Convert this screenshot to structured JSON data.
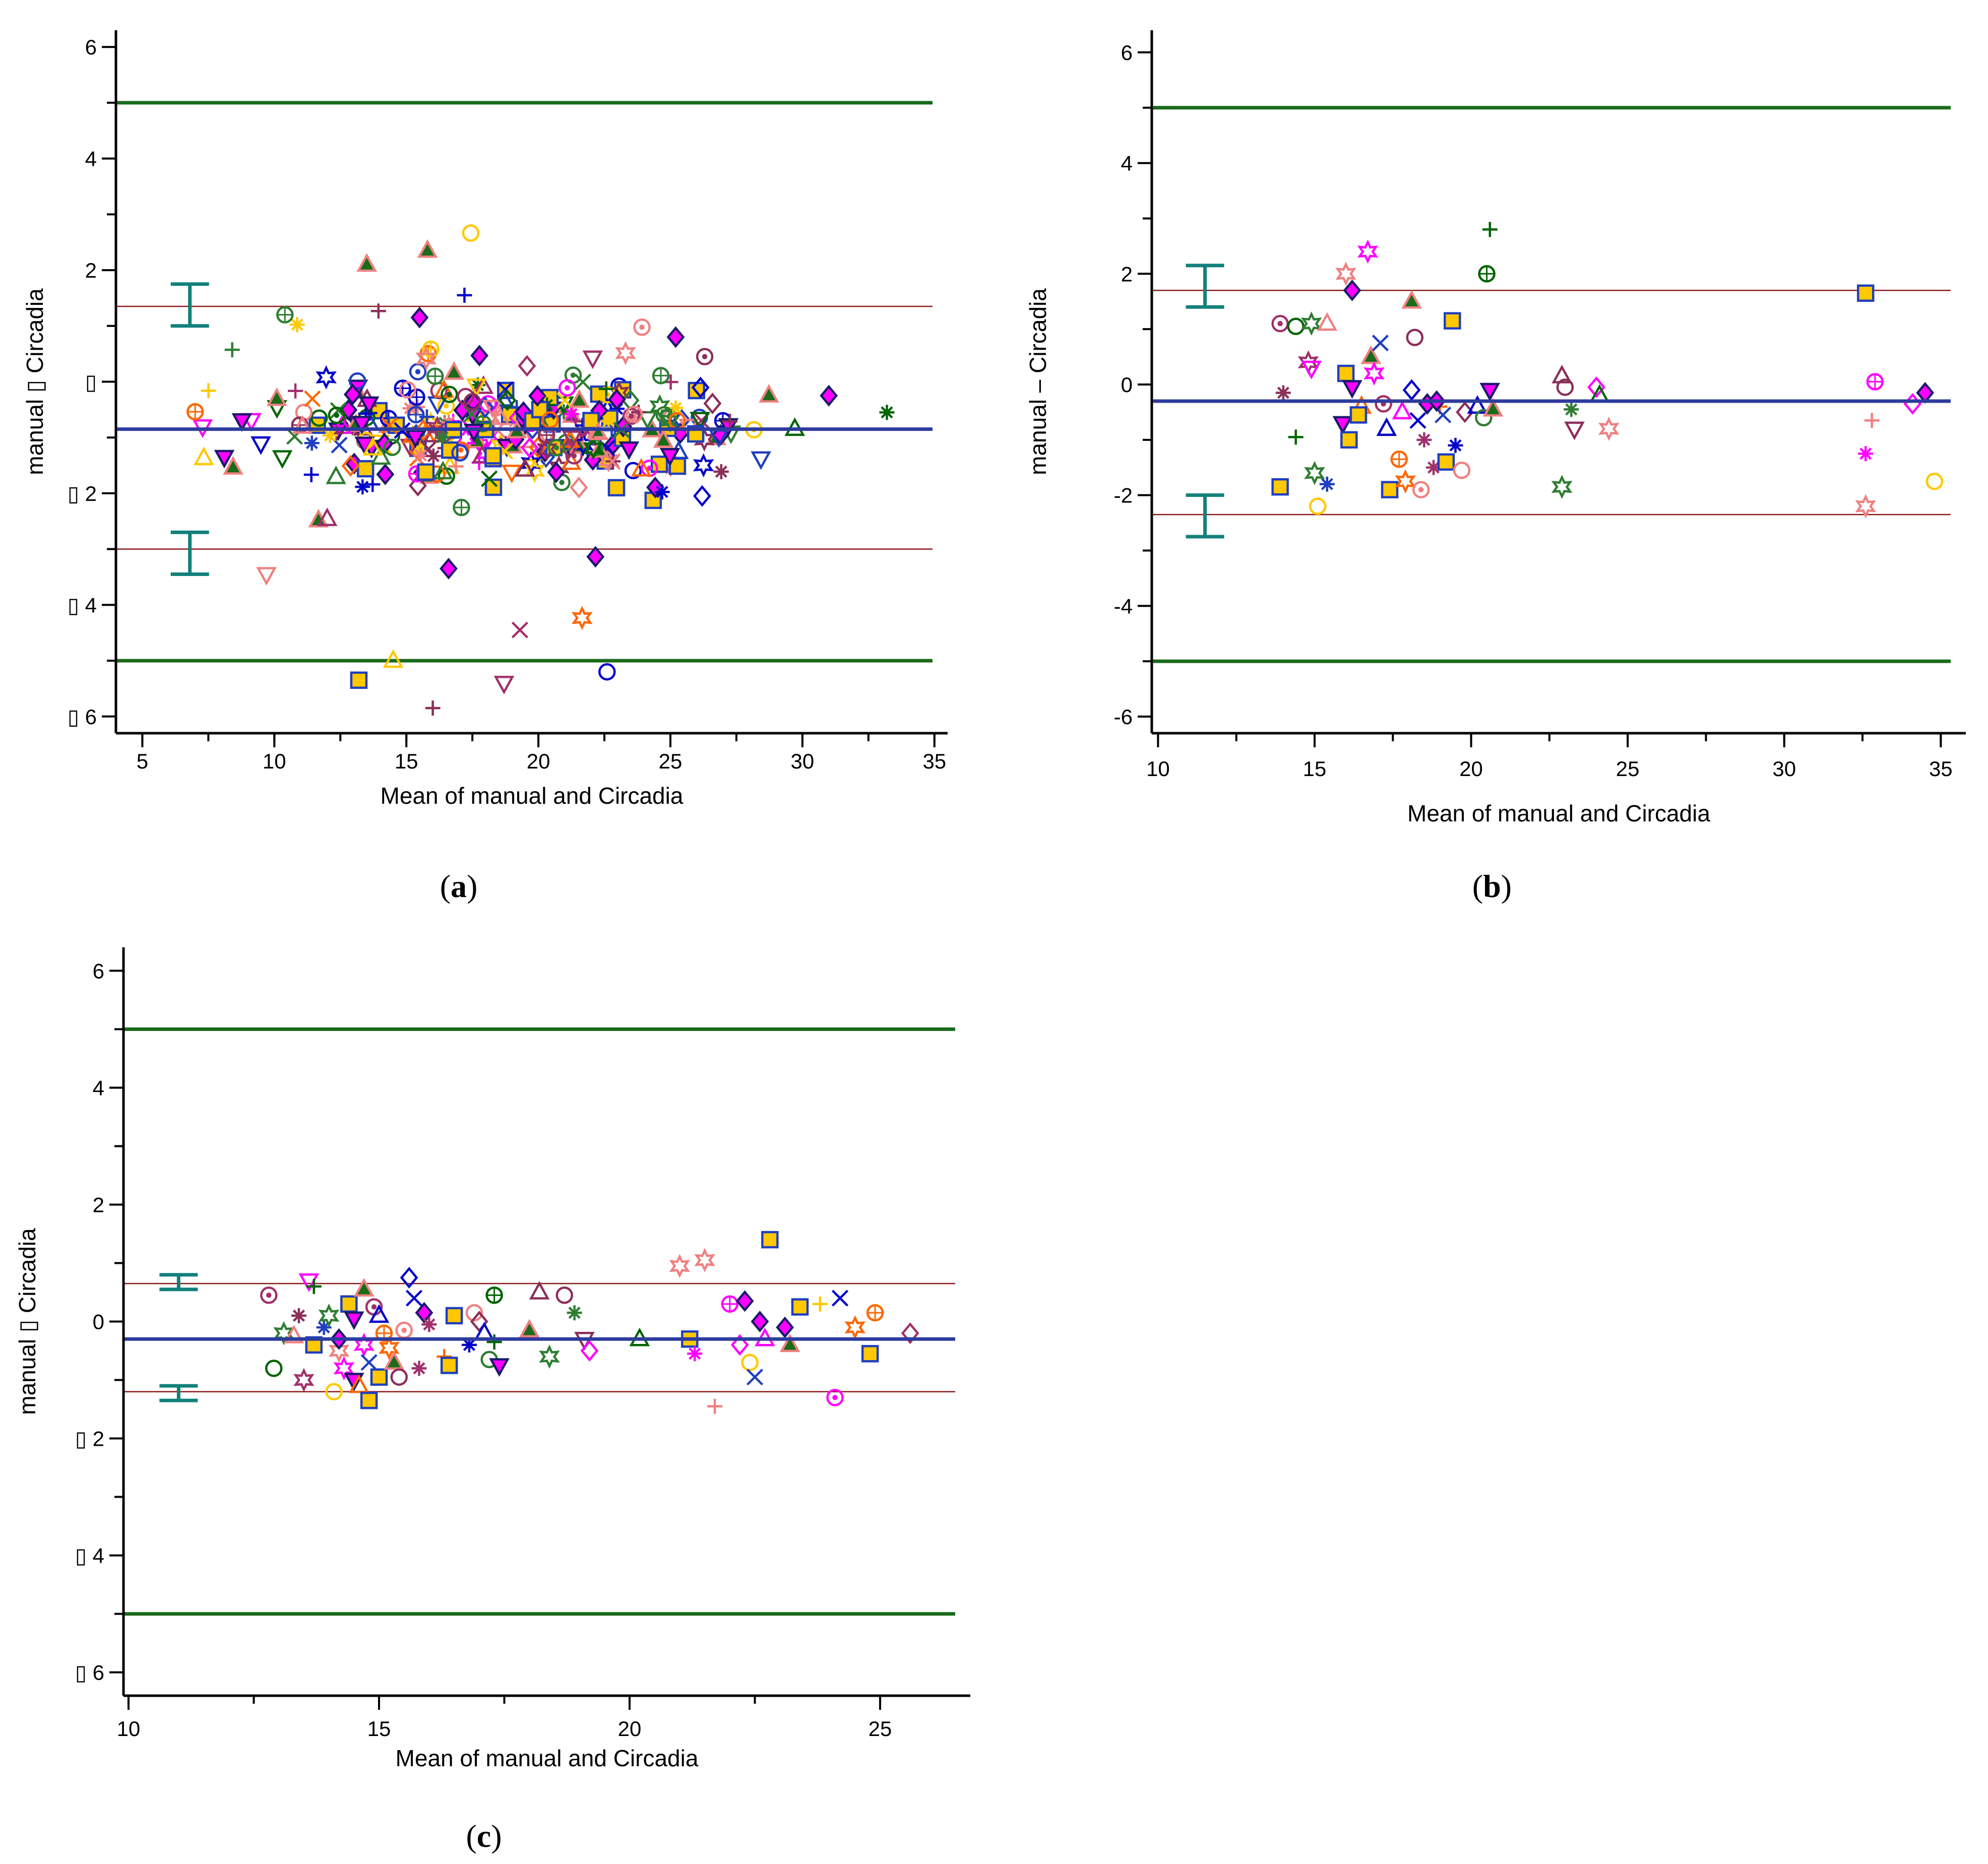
{
  "colors": {
    "limit": "#1a6b1a",
    "mean": "#2e3c9e",
    "loa": "#8b1a1a",
    "ci": "#12807a",
    "markers": [
      "#ff00ff",
      "#ffc800",
      "#ff6600",
      "#0000cc",
      "#2e7d32",
      "#8b2e5a",
      "#f08080",
      "#006400",
      "#a0306a",
      "#1f3fbf"
    ]
  },
  "chart_data": [
    {
      "panel": "a",
      "panel_label": "a",
      "type": "scatter",
      "xlabel": "Mean of manual and Circadia",
      "ylabel": "manual ▯ Circadia",
      "xlim": [
        4,
        35.5
      ],
      "ylim": [
        -6.3,
        6.3
      ],
      "xticks": [
        5,
        10,
        15,
        20,
        25,
        30,
        35
      ],
      "yticks": [
        -6,
        -4,
        -2,
        0,
        2,
        4,
        6
      ],
      "ytick_labels": [
        "▯ 6",
        "▯ 4",
        "▯ 2",
        "▯",
        "2",
        "4",
        "6"
      ],
      "upper_limit": 5,
      "lower_limit": -5,
      "mean_difference": -0.85,
      "upper_loa": 1.35,
      "lower_loa": -3.0,
      "ci_upper": [
        1.0,
        1.75
      ],
      "ci_lower": [
        -3.45,
        -2.7
      ],
      "ci_x": 6.8,
      "n_points": 340,
      "point_x_range": [
        7,
        33.5
      ],
      "point_sd": 0.9,
      "seed": 11,
      "highlight_points": [
        {
          "x": 13.5,
          "y": 2.1
        },
        {
          "x": 15.8,
          "y": 2.35
        },
        {
          "x": 10.4,
          "y": 1.2
        },
        {
          "x": 17.2,
          "y": 1.55
        },
        {
          "x": 15.5,
          "y": 1.15
        },
        {
          "x": 9.7,
          "y": -3.45
        },
        {
          "x": 13.2,
          "y": -5.35
        },
        {
          "x": 16.0,
          "y": -5.85
        },
        {
          "x": 22.6,
          "y": -5.2
        },
        {
          "x": 18.7,
          "y": -5.4
        },
        {
          "x": 14.5,
          "y": -5.0
        },
        {
          "x": 19.3,
          "y": -4.45
        },
        {
          "x": 16.6,
          "y": -3.35
        },
        {
          "x": 25.2,
          "y": 0.8
        },
        {
          "x": 31.0,
          "y": -0.25
        },
        {
          "x": 33.2,
          "y": -0.55
        },
        {
          "x": 26.3,
          "y": 0.45
        }
      ]
    },
    {
      "panel": "b",
      "panel_label": "b",
      "type": "scatter",
      "xlabel": "Mean of manual and Circadia",
      "ylabel": "manual – Circadia",
      "xlim": [
        9.8,
        35.8
      ],
      "ylim": [
        -6.3,
        6.4
      ],
      "xticks": [
        10,
        15,
        20,
        25,
        30,
        35
      ],
      "yticks": [
        -6,
        -4,
        -2,
        0,
        2,
        4,
        6
      ],
      "ytick_labels": [
        "-6",
        "-4",
        "-2",
        "0",
        "2",
        "4",
        "6"
      ],
      "upper_limit": 5,
      "lower_limit": -5,
      "mean_difference": -0.3,
      "upper_loa": 1.7,
      "lower_loa": -2.35,
      "ci_upper": [
        1.4,
        2.15
      ],
      "ci_lower": [
        -2.75,
        -2.0
      ],
      "ci_x": 11.5,
      "points": [
        {
          "x": 13.9,
          "y": 1.1
        },
        {
          "x": 14.4,
          "y": 1.05
        },
        {
          "x": 14.9,
          "y": 1.1
        },
        {
          "x": 15.4,
          "y": 1.1
        },
        {
          "x": 14.0,
          "y": -0.15
        },
        {
          "x": 14.8,
          "y": 0.4
        },
        {
          "x": 14.9,
          "y": 0.3
        },
        {
          "x": 14.4,
          "y": -0.95
        },
        {
          "x": 13.9,
          "y": -1.85
        },
        {
          "x": 15.4,
          "y": -1.8
        },
        {
          "x": 15.0,
          "y": -1.6
        },
        {
          "x": 15.1,
          "y": -2.2
        },
        {
          "x": 16.0,
          "y": 2.0
        },
        {
          "x": 16.2,
          "y": 1.7
        },
        {
          "x": 16.7,
          "y": 2.4
        },
        {
          "x": 16.0,
          "y": 0.2
        },
        {
          "x": 16.2,
          "y": -0.05
        },
        {
          "x": 15.9,
          "y": -0.7
        },
        {
          "x": 16.5,
          "y": -0.4
        },
        {
          "x": 16.8,
          "y": 0.5
        },
        {
          "x": 16.9,
          "y": 0.2
        },
        {
          "x": 16.1,
          "y": -1.0
        },
        {
          "x": 17.1,
          "y": 0.75
        },
        {
          "x": 17.2,
          "y": -0.35
        },
        {
          "x": 17.3,
          "y": -0.8
        },
        {
          "x": 17.4,
          "y": -1.9
        },
        {
          "x": 17.7,
          "y": -1.35
        },
        {
          "x": 17.9,
          "y": -1.75
        },
        {
          "x": 18.1,
          "y": 1.5
        },
        {
          "x": 18.2,
          "y": 0.85
        },
        {
          "x": 18.4,
          "y": -1.9
        },
        {
          "x": 18.1,
          "y": -0.1
        },
        {
          "x": 18.3,
          "y": -0.65
        },
        {
          "x": 18.5,
          "y": -1.0
        },
        {
          "x": 18.6,
          "y": -0.35
        },
        {
          "x": 18.8,
          "y": -1.5
        },
        {
          "x": 19.0,
          "y": -0.4
        },
        {
          "x": 19.2,
          "y": -1.4
        },
        {
          "x": 19.4,
          "y": 1.15
        },
        {
          "x": 19.5,
          "y": -1.1
        },
        {
          "x": 19.7,
          "y": -1.55
        },
        {
          "x": 19.8,
          "y": -0.5
        },
        {
          "x": 20.2,
          "y": -0.4
        },
        {
          "x": 20.4,
          "y": -0.6
        },
        {
          "x": 20.5,
          "y": 2.0
        },
        {
          "x": 20.6,
          "y": 2.8
        },
        {
          "x": 20.6,
          "y": -0.1
        },
        {
          "x": 20.7,
          "y": -0.45
        },
        {
          "x": 22.9,
          "y": 0.15
        },
        {
          "x": 22.9,
          "y": -1.85
        },
        {
          "x": 23.0,
          "y": -0.05
        },
        {
          "x": 23.2,
          "y": -0.45
        },
        {
          "x": 23.3,
          "y": -0.8
        },
        {
          "x": 24.0,
          "y": -0.05
        },
        {
          "x": 24.1,
          "y": -0.2
        },
        {
          "x": 24.4,
          "y": -0.8
        },
        {
          "x": 32.6,
          "y": 1.65
        },
        {
          "x": 32.6,
          "y": -1.25
        },
        {
          "x": 32.6,
          "y": -2.2
        },
        {
          "x": 32.8,
          "y": -0.65
        },
        {
          "x": 32.9,
          "y": 0.05
        },
        {
          "x": 34.1,
          "y": -0.35
        },
        {
          "x": 34.5,
          "y": -0.15
        },
        {
          "x": 34.8,
          "y": -1.75
        },
        {
          "x": 19.1,
          "y": -0.55
        },
        {
          "x": 18.9,
          "y": -0.3
        },
        {
          "x": 17.8,
          "y": -0.5
        },
        {
          "x": 16.4,
          "y": -0.55
        }
      ]
    },
    {
      "panel": "c",
      "panel_label": "c",
      "type": "scatter",
      "xlabel": "Mean of manual and Circadia",
      "ylabel": "manual ▯ Circadia",
      "xlim": [
        9.9,
        26.8
      ],
      "ylim": [
        -6.4,
        6.4
      ],
      "xticks": [
        10,
        15,
        20,
        25
      ],
      "yticks": [
        -6,
        -4,
        -2,
        0,
        2,
        4,
        6
      ],
      "ytick_labels": [
        "▯ 6",
        "▯ 4",
        "▯ 2",
        "0",
        "2",
        "4",
        "6"
      ],
      "upper_limit": 5,
      "lower_limit": -5,
      "mean_difference": -0.3,
      "upper_loa": 0.65,
      "lower_loa": -1.2,
      "ci_upper": [
        0.55,
        0.8
      ],
      "ci_lower": [
        -1.35,
        -1.1
      ],
      "ci_x": 11.0,
      "points": [
        {
          "x": 12.8,
          "y": 0.45
        },
        {
          "x": 12.9,
          "y": -0.8
        },
        {
          "x": 13.1,
          "y": -0.2
        },
        {
          "x": 13.3,
          "y": -0.25
        },
        {
          "x": 13.4,
          "y": 0.1
        },
        {
          "x": 13.5,
          "y": -1.0
        },
        {
          "x": 13.6,
          "y": 0.7
        },
        {
          "x": 13.7,
          "y": 0.6
        },
        {
          "x": 13.7,
          "y": -0.4
        },
        {
          "x": 13.9,
          "y": -0.1
        },
        {
          "x": 14.0,
          "y": 0.1
        },
        {
          "x": 14.1,
          "y": -1.2
        },
        {
          "x": 14.2,
          "y": -0.5
        },
        {
          "x": 14.2,
          "y": -0.3
        },
        {
          "x": 14.3,
          "y": -0.8
        },
        {
          "x": 14.4,
          "y": 0.3
        },
        {
          "x": 14.5,
          "y": 0.05
        },
        {
          "x": 14.5,
          "y": -1.0
        },
        {
          "x": 14.6,
          "y": -1.1
        },
        {
          "x": 14.7,
          "y": 0.55
        },
        {
          "x": 14.7,
          "y": -0.4
        },
        {
          "x": 14.8,
          "y": -1.35
        },
        {
          "x": 14.8,
          "y": -0.7
        },
        {
          "x": 14.9,
          "y": 0.25
        },
        {
          "x": 15.0,
          "y": 0.1
        },
        {
          "x": 15.0,
          "y": -0.95
        },
        {
          "x": 15.1,
          "y": -0.2
        },
        {
          "x": 15.2,
          "y": -0.45
        },
        {
          "x": 15.3,
          "y": -0.7
        },
        {
          "x": 15.4,
          "y": -0.95
        },
        {
          "x": 15.5,
          "y": -0.15
        },
        {
          "x": 15.6,
          "y": 0.75
        },
        {
          "x": 15.7,
          "y": 0.4
        },
        {
          "x": 15.8,
          "y": -0.8
        },
        {
          "x": 15.9,
          "y": 0.15
        },
        {
          "x": 16.0,
          "y": -0.05
        },
        {
          "x": 16.3,
          "y": -0.6
        },
        {
          "x": 16.4,
          "y": -0.75
        },
        {
          "x": 16.5,
          "y": 0.1
        },
        {
          "x": 16.8,
          "y": -0.4
        },
        {
          "x": 16.9,
          "y": 0.15
        },
        {
          "x": 17.0,
          "y": 0.0
        },
        {
          "x": 17.1,
          "y": -0.2
        },
        {
          "x": 17.2,
          "y": -0.65
        },
        {
          "x": 17.3,
          "y": 0.45
        },
        {
          "x": 17.3,
          "y": -0.35
        },
        {
          "x": 17.4,
          "y": -0.75
        },
        {
          "x": 18.0,
          "y": -0.15
        },
        {
          "x": 18.2,
          "y": 0.5
        },
        {
          "x": 18.4,
          "y": -0.6
        },
        {
          "x": 18.7,
          "y": 0.45
        },
        {
          "x": 18.9,
          "y": 0.15
        },
        {
          "x": 19.1,
          "y": -0.3
        },
        {
          "x": 19.2,
          "y": -0.5
        },
        {
          "x": 20.2,
          "y": -0.3
        },
        {
          "x": 21.0,
          "y": 0.95
        },
        {
          "x": 21.2,
          "y": -0.3
        },
        {
          "x": 21.3,
          "y": -0.55
        },
        {
          "x": 21.5,
          "y": 1.05
        },
        {
          "x": 21.7,
          "y": -1.45
        },
        {
          "x": 22.0,
          "y": 0.3
        },
        {
          "x": 22.2,
          "y": -0.4
        },
        {
          "x": 22.3,
          "y": 0.35
        },
        {
          "x": 22.4,
          "y": -0.7
        },
        {
          "x": 22.5,
          "y": -0.95
        },
        {
          "x": 22.6,
          "y": 0.0
        },
        {
          "x": 22.7,
          "y": -0.3
        },
        {
          "x": 22.8,
          "y": 1.4
        },
        {
          "x": 23.1,
          "y": -0.1
        },
        {
          "x": 23.2,
          "y": -0.4
        },
        {
          "x": 23.4,
          "y": 0.25
        },
        {
          "x": 23.8,
          "y": 0.3
        },
        {
          "x": 24.1,
          "y": -1.3
        },
        {
          "x": 24.2,
          "y": 0.4
        },
        {
          "x": 24.5,
          "y": -0.1
        },
        {
          "x": 24.8,
          "y": -0.55
        },
        {
          "x": 24.9,
          "y": 0.15
        },
        {
          "x": 25.6,
          "y": -0.2
        }
      ]
    }
  ]
}
